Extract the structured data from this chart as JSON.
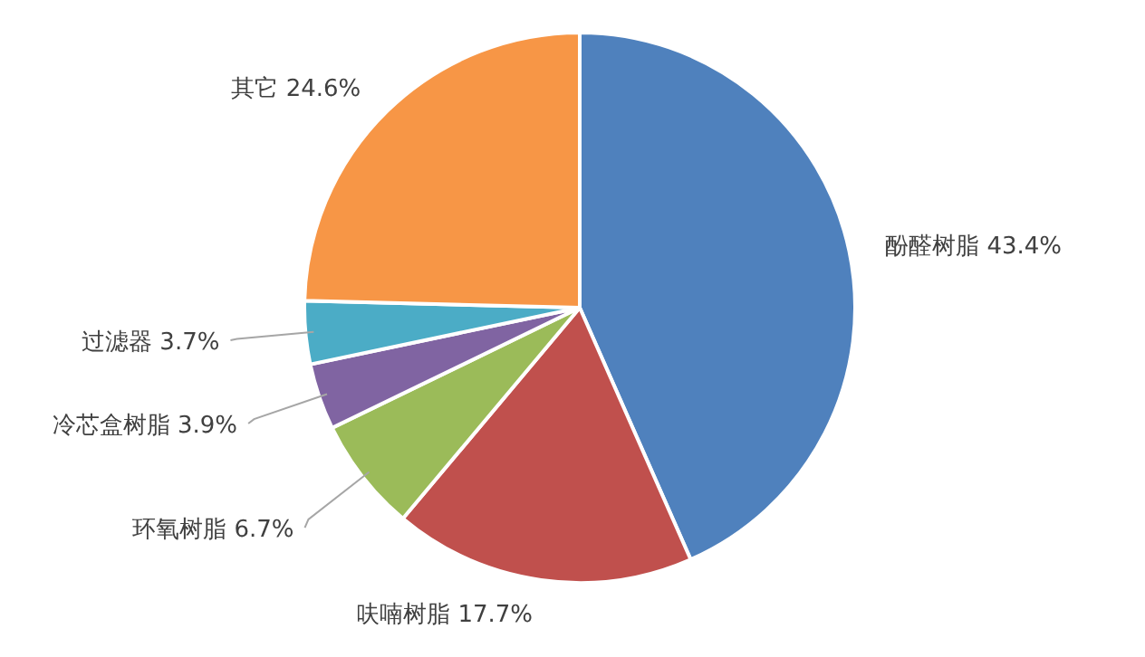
{
  "chart_data": {
    "type": "pie",
    "categories": [
      "酚醛树脂",
      "呋喃树脂",
      "环氧树脂",
      "冷芯盒树脂",
      "过滤器",
      "其它"
    ],
    "values": [
      43.4,
      17.7,
      6.7,
      3.9,
      3.7,
      24.6
    ],
    "colors": [
      "#4f81bd",
      "#c0504d",
      "#9bbb59",
      "#8064a2",
      "#4bacc6",
      "#f79646"
    ],
    "value_labels": [
      "43.4%",
      "17.7%",
      "6.7%",
      "3.9%",
      "3.7%",
      "24.6%"
    ]
  }
}
